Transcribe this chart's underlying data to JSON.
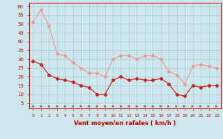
{
  "hours": [
    0,
    1,
    2,
    3,
    4,
    5,
    6,
    7,
    8,
    9,
    10,
    11,
    12,
    13,
    14,
    15,
    16,
    17,
    18,
    19,
    20,
    21,
    22,
    23
  ],
  "wind_avg": [
    29,
    27,
    21,
    19,
    18,
    17,
    15,
    14,
    10,
    10,
    18,
    20,
    18,
    19,
    18,
    18,
    19,
    16,
    10,
    9,
    15,
    14,
    15,
    15
  ],
  "wind_gust": [
    51,
    58,
    49,
    33,
    32,
    28,
    25,
    22,
    22,
    20,
    30,
    32,
    32,
    30,
    32,
    32,
    30,
    23,
    21,
    16,
    26,
    27,
    26,
    25
  ],
  "wind_dir_deg": [
    80,
    80,
    80,
    80,
    80,
    70,
    70,
    80,
    80,
    80,
    80,
    80,
    80,
    60,
    60,
    60,
    50,
    40,
    30,
    20,
    40,
    40,
    40,
    40
  ],
  "bg_color": "#cce8ec",
  "grid_color": "#aaccd4",
  "avg_color": "#cc2222",
  "gust_color": "#ee9999",
  "axis_color": "#cc0000",
  "xlabel": "Vent moyen/en rafales ( km/h )",
  "yticks": [
    5,
    10,
    15,
    20,
    25,
    30,
    35,
    40,
    45,
    50,
    55,
    60
  ],
  "ylim": [
    2,
    62
  ],
  "xlim": [
    -0.5,
    23.5
  ]
}
